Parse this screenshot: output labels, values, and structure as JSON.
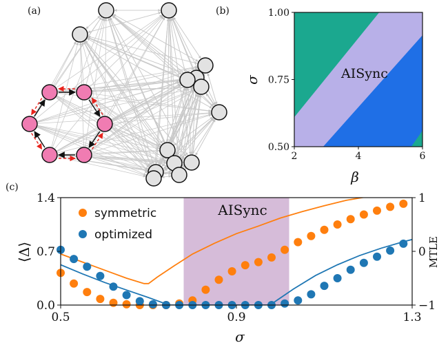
{
  "panels": {
    "a": {
      "label": "(a)"
    },
    "b": {
      "label": "(b)"
    },
    "c": {
      "label": "(c)"
    }
  },
  "colors": {
    "teal": "#1ba88f",
    "lavender": "#b8b0e8",
    "blue": "#1f6fe6",
    "orange": "#ff7f0e",
    "steel": "#1f77b4",
    "pink": "#f07cb2",
    "node_gray": "#e2e2e2",
    "shade": "#c8a6cc",
    "edge_gray": "#c9c9c9",
    "edge_red": "#e8231c"
  },
  "network": {
    "gray_node_count": 14,
    "pink_node_count": 6
  },
  "phase_diagram": {
    "region_label": "AISync",
    "xlabel": "β",
    "ylabel": "σ",
    "xticks": [
      "2",
      "4",
      "6"
    ],
    "yticks": [
      "0.50",
      "0.75",
      "1.00"
    ]
  },
  "chart_data": {
    "type": "scatter",
    "xlabel": "σ",
    "ylabel": "⟨Δ⟩",
    "y2label": "MTLE",
    "xlim": [
      0.5,
      1.3
    ],
    "ylim": [
      0,
      1.4
    ],
    "y2lim": [
      -1,
      1
    ],
    "xticks": [
      "0.5",
      "0.9",
      "1.3"
    ],
    "yticks": [
      "0.0",
      "0.7",
      "1.4"
    ],
    "y2ticks": [
      "−1",
      "0",
      "1"
    ],
    "shaded_region": {
      "label": "AISync",
      "x": [
        0.78,
        1.02
      ]
    },
    "legend": [
      "symmetric",
      "optimized"
    ],
    "series": [
      {
        "name": "symmetric",
        "x": [
          0.5,
          0.53,
          0.56,
          0.59,
          0.62,
          0.65,
          0.68,
          0.71,
          0.74,
          0.77,
          0.8,
          0.83,
          0.86,
          0.89,
          0.92,
          0.95,
          0.98,
          1.01,
          1.04,
          1.07,
          1.1,
          1.13,
          1.16,
          1.19,
          1.22,
          1.25,
          1.28
        ],
        "y": [
          0.42,
          0.28,
          0.17,
          0.08,
          0.03,
          0.01,
          0.0,
          0.0,
          0.0,
          0.02,
          0.06,
          0.2,
          0.33,
          0.44,
          0.52,
          0.56,
          0.62,
          0.72,
          0.82,
          0.9,
          0.98,
          1.05,
          1.12,
          1.18,
          1.23,
          1.28,
          1.32
        ]
      },
      {
        "name": "optimized",
        "x": [
          0.5,
          0.53,
          0.56,
          0.59,
          0.62,
          0.65,
          0.68,
          0.71,
          0.74,
          0.77,
          0.8,
          0.83,
          0.86,
          0.89,
          0.92,
          0.95,
          0.98,
          1.01,
          1.04,
          1.07,
          1.1,
          1.13,
          1.16,
          1.19,
          1.22,
          1.25,
          1.28
        ],
        "y": [
          0.72,
          0.6,
          0.5,
          0.38,
          0.24,
          0.13,
          0.05,
          0.01,
          0.0,
          0.0,
          0.0,
          0.0,
          0.0,
          0.0,
          0.0,
          0.0,
          0.0,
          0.02,
          0.06,
          0.14,
          0.25,
          0.35,
          0.46,
          0.55,
          0.63,
          0.71,
          0.8
        ]
      },
      {
        "name": "MTLE symmetric",
        "axis": "right",
        "x": [
          0.5,
          0.55,
          0.6,
          0.65,
          0.69,
          0.7,
          0.72,
          0.76,
          0.8,
          0.85,
          0.9,
          0.95,
          1.0,
          1.05,
          1.1,
          1.15,
          1.2
        ],
        "y": [
          -0.05,
          -0.2,
          -0.35,
          -0.5,
          -0.6,
          -0.6,
          -0.48,
          -0.26,
          -0.05,
          0.15,
          0.33,
          0.47,
          0.62,
          0.74,
          0.85,
          0.95,
          1.02
        ]
      },
      {
        "name": "MTLE optimized",
        "axis": "right",
        "x": [
          0.5,
          0.55,
          0.6,
          0.65,
          0.7,
          0.73,
          0.75,
          0.97,
          0.98,
          1.03,
          1.08,
          1.13,
          1.18,
          1.23,
          1.28,
          1.3
        ],
        "y": [
          -0.25,
          -0.42,
          -0.58,
          -0.72,
          -0.86,
          -0.95,
          -1.0,
          -1.0,
          -0.98,
          -0.7,
          -0.45,
          -0.25,
          -0.08,
          0.06,
          0.18,
          0.22
        ]
      }
    ]
  }
}
